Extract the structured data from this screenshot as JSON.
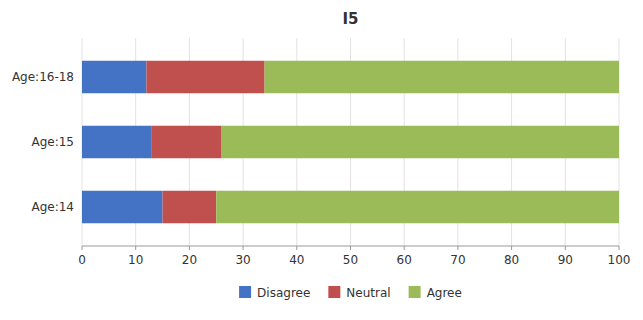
{
  "chart_data": {
    "type": "bar",
    "orientation": "horizontal",
    "stacked": true,
    "title": "I5",
    "categories": [
      "Age:14",
      "Age:15",
      "Age:16-18"
    ],
    "series": [
      {
        "name": "Disagree",
        "color": "#4472C4",
        "values": [
          15,
          13,
          12
        ]
      },
      {
        "name": "Neutral",
        "color": "#C0504D",
        "values": [
          10,
          13,
          22
        ]
      },
      {
        "name": "Agree",
        "color": "#9BBB59",
        "values": [
          75,
          74,
          66
        ]
      }
    ],
    "xlim": [
      0,
      100
    ],
    "xticks": [
      0,
      10,
      20,
      30,
      40,
      50,
      60,
      70,
      80,
      90,
      100
    ],
    "grid": true,
    "legend": "bottom"
  }
}
